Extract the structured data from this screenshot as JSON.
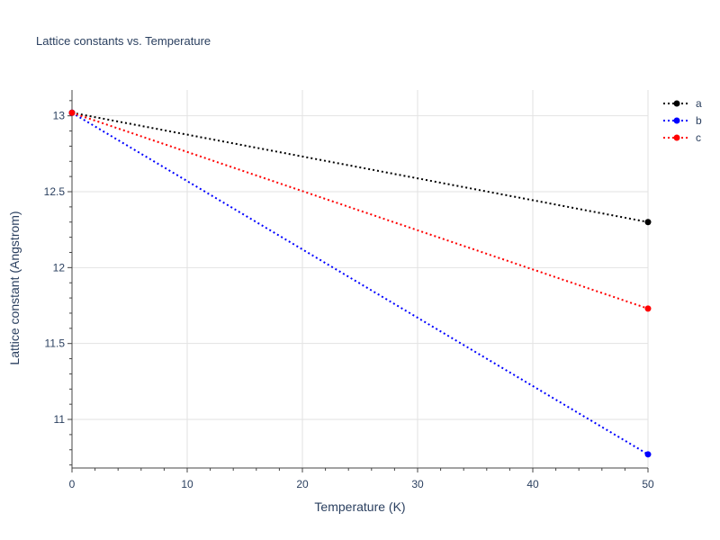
{
  "chart_data": {
    "type": "line",
    "title": "Lattice constants vs. Temperature",
    "xlabel": "Temperature (K)",
    "ylabel": "Lattice constant (Angstrom)",
    "xlim": [
      0,
      50
    ],
    "ylim": [
      10.68,
      13.17
    ],
    "x_ticks": [
      0,
      10,
      20,
      30,
      40,
      50
    ],
    "y_ticks": [
      11,
      11.5,
      12,
      12.5,
      13
    ],
    "x_tick_labels": [
      "0",
      "10",
      "20",
      "30",
      "40",
      "50"
    ],
    "y_tick_labels": [
      "11",
      "11.5",
      "12",
      "12.5",
      "13"
    ],
    "grid": true,
    "legend_position": "top-right",
    "x": [
      0,
      50
    ],
    "series": [
      {
        "name": "a",
        "values": [
          13.02,
          12.3
        ],
        "color": "#000000",
        "line_style": "dotted",
        "marker": "circle"
      },
      {
        "name": "b",
        "values": [
          13.02,
          10.77
        ],
        "color": "#0000ff",
        "line_style": "dotted",
        "marker": "circle"
      },
      {
        "name": "c",
        "values": [
          13.02,
          11.73
        ],
        "color": "#ff0000",
        "line_style": "dotted",
        "marker": "circle"
      }
    ]
  }
}
